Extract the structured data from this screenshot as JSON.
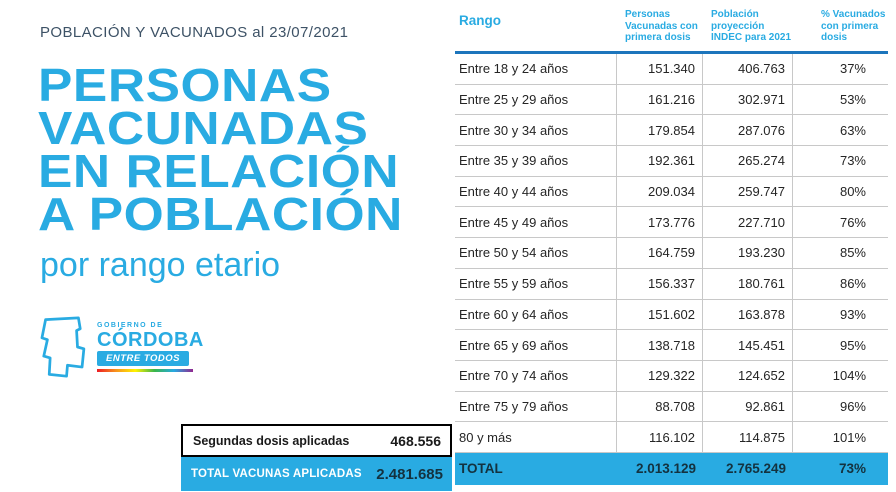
{
  "meta": {
    "accent_cyan": "#29abe2",
    "rule_blue": "#1c75bc",
    "dark_navy": "#14323f"
  },
  "header": {
    "kicker": "POBLACIÓN Y VACUNADOS al 23/07/2021",
    "title_lines": [
      "PERSONAS",
      "VACUNADAS",
      "EN RELACIÓN",
      "A POBLACIÓN"
    ],
    "subtitle": "por rango etario"
  },
  "logo": {
    "line1": "GOBIERNO DE",
    "line2": "CÓRDOBA",
    "line3": "ENTRE TODOS"
  },
  "summary_table": {
    "rows": [
      {
        "label": "Segundas dosis aplicadas",
        "value": "468.556"
      },
      {
        "label": "TOTAL VACUNAS APLICADAS",
        "value": "2.481.685"
      }
    ]
  },
  "chart_data": {
    "type": "table",
    "title": "Personas vacunadas en relación a población por rango etario",
    "columns": [
      "Rango",
      "Personas Vacunadas con primera dosis",
      "Población proyección INDEC para 2021",
      "% Vacunados con primera dosis"
    ],
    "rows": [
      [
        "Entre 18 y 24 años",
        "151.340",
        "406.763",
        "37%"
      ],
      [
        "Entre 25 y 29 años",
        "161.216",
        "302.971",
        "53%"
      ],
      [
        "Entre 30 y 34 años",
        "179.854",
        "287.076",
        "63%"
      ],
      [
        "Entre 35 y 39 años",
        "192.361",
        "265.274",
        "73%"
      ],
      [
        "Entre 40 y 44 años",
        "209.034",
        "259.747",
        "80%"
      ],
      [
        "Entre 45 y 49 años",
        "173.776",
        "227.710",
        "76%"
      ],
      [
        "Entre 50 y 54 años",
        "164.759",
        "193.230",
        "85%"
      ],
      [
        "Entre 55 y 59 años",
        "156.337",
        "180.761",
        "86%"
      ],
      [
        "Entre 60 y 64 años",
        "151.602",
        "163.878",
        "93%"
      ],
      [
        "Entre 65 y 69 años",
        "138.718",
        "145.451",
        "95%"
      ],
      [
        "Entre 70 y 74 años",
        "129.322",
        "124.652",
        "104%"
      ],
      [
        "Entre 75 y 79 años",
        "88.708",
        "92.861",
        "96%"
      ],
      [
        "80 y más",
        "116.102",
        "114.875",
        "101%"
      ]
    ],
    "total_row": [
      "TOTAL",
      "2.013.129",
      "2.765.249",
      "73%"
    ]
  }
}
